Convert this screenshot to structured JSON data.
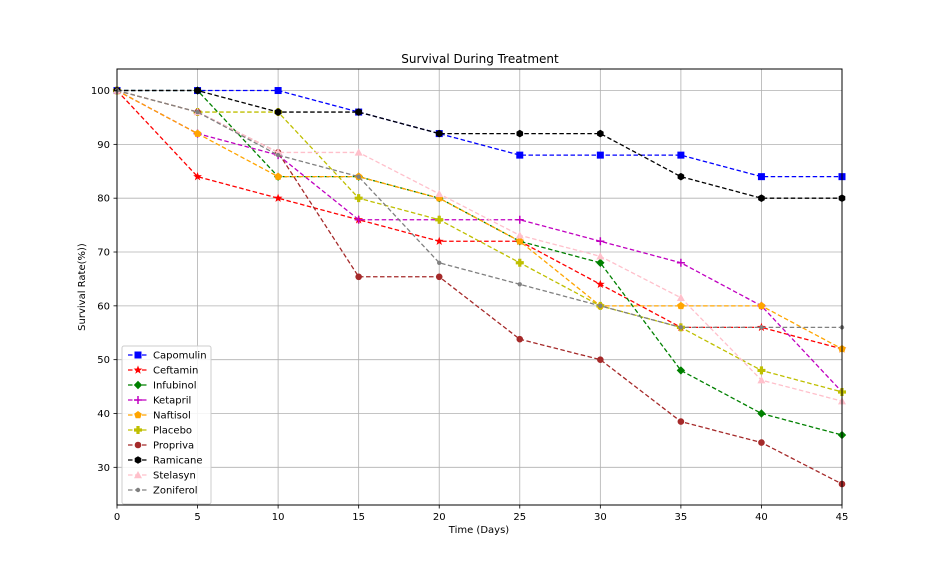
{
  "chart_data": {
    "type": "line",
    "title": "Survival During Treatment",
    "xlabel": "Time (Days)",
    "ylabel": "Survival Rate(%))",
    "xlim": [
      0,
      45
    ],
    "ylim": [
      23,
      104
    ],
    "xticks": [
      0,
      5,
      10,
      15,
      20,
      25,
      30,
      35,
      40,
      45
    ],
    "yticks": [
      30,
      40,
      50,
      60,
      70,
      80,
      90,
      100
    ],
    "grid": true,
    "legend_position": "lower-left",
    "x": [
      0,
      5,
      10,
      15,
      20,
      25,
      30,
      35,
      40,
      45
    ],
    "series": [
      {
        "name": "Capomulin",
        "color": "#0000ff",
        "marker": "square",
        "values": [
          100,
          100,
          100,
          96,
          92,
          88,
          88,
          88,
          84,
          84
        ]
      },
      {
        "name": "Ceftamin",
        "color": "#ff0000",
        "marker": "star",
        "values": [
          100,
          84,
          80,
          76,
          72,
          72,
          64,
          56,
          56,
          52
        ]
      },
      {
        "name": "Infubinol",
        "color": "#008000",
        "marker": "diamond",
        "values": [
          100,
          100,
          84,
          84,
          80,
          72,
          68,
          48,
          40,
          36
        ]
      },
      {
        "name": "Ketapril",
        "color": "#c000c0",
        "marker": "plus",
        "values": [
          100,
          92,
          88,
          76,
          76,
          76,
          72,
          68,
          60,
          44
        ]
      },
      {
        "name": "Naftisol",
        "color": "#ffa500",
        "marker": "pentagon",
        "values": [
          100,
          92,
          84,
          84,
          80,
          72,
          60,
          60,
          60,
          52
        ]
      },
      {
        "name": "Placebo",
        "color": "#bfbf00",
        "marker": "plus-filled",
        "values": [
          100,
          96,
          96,
          80,
          76,
          68,
          60,
          56,
          48,
          44
        ]
      },
      {
        "name": "Propriva",
        "color": "#a52a2a",
        "marker": "circle",
        "values": [
          100,
          96,
          88.5,
          65.4,
          65.4,
          53.8,
          50,
          38.5,
          34.6,
          26.9
        ]
      },
      {
        "name": "Ramicane",
        "color": "#000000",
        "marker": "hexagon",
        "values": [
          100,
          100,
          96,
          96,
          92,
          92,
          92,
          84,
          80,
          80
        ]
      },
      {
        "name": "Stelasyn",
        "color": "#ffc0cb",
        "marker": "triangle",
        "values": [
          100,
          96,
          88.5,
          88.5,
          80.8,
          73.1,
          69.2,
          61.5,
          46.2,
          42.3
        ]
      },
      {
        "name": "Zoniferol",
        "color": "#808080",
        "marker": "small-circle",
        "values": [
          100,
          96,
          88,
          84,
          68,
          64,
          60,
          56,
          56,
          56
        ]
      }
    ]
  }
}
